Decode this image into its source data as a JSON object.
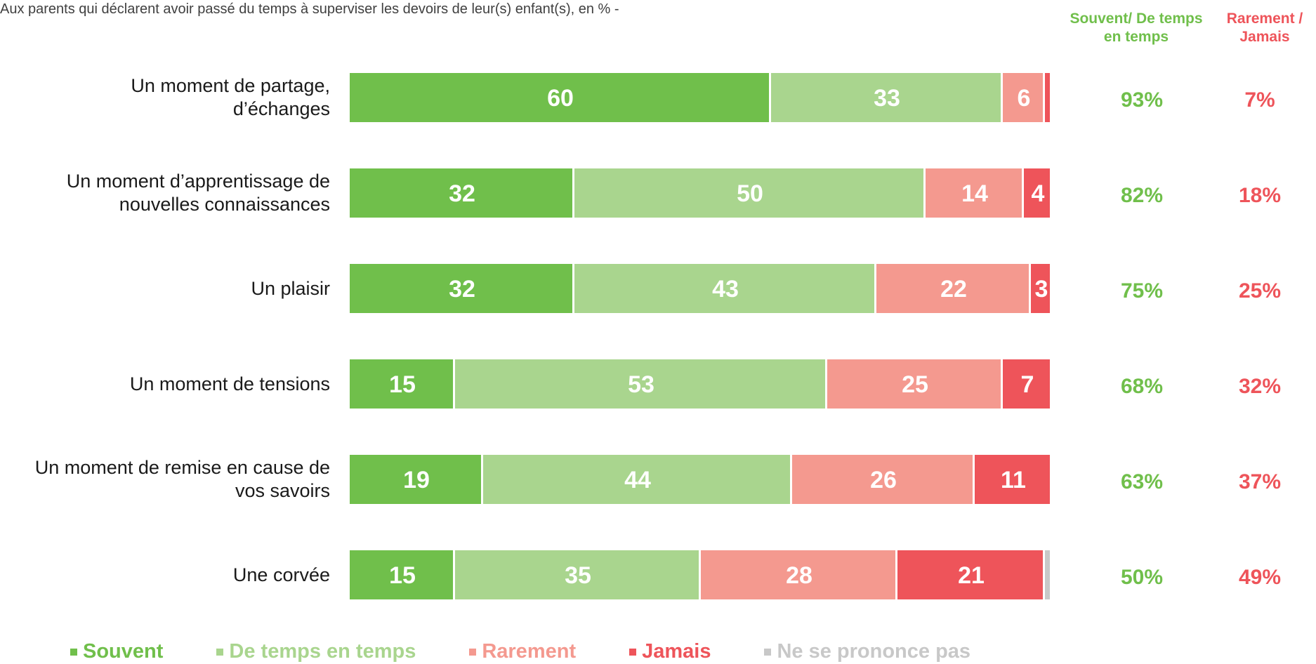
{
  "subtitle": "Aux parents qui déclarent avoir passé du temps à superviser les devoirs de leur(s) enfant(s), en % -",
  "column_headers": {
    "positive": "Souvent/ De temps en temps",
    "negative": "Rarement / Jamais"
  },
  "colors": {
    "souvent": "#70bf4b",
    "de_temps": "#a9d58e",
    "rarement": "#f4998f",
    "jamais": "#ee545a",
    "nspp": "#c8c8c8",
    "positive_text": "#70bf4b",
    "negative_text": "#ee545a"
  },
  "chart_data": {
    "type": "bar",
    "stacked": true,
    "orientation": "horizontal",
    "categories": [
      "Un moment de partage, d’échanges",
      "Un moment d’apprentissage de nouvelles connaissances",
      "Un plaisir",
      "Un moment de tensions",
      "Un moment de remise en cause de vos savoirs",
      "Une corvée"
    ],
    "series": [
      {
        "name": "Souvent",
        "values": [
          60,
          32,
          32,
          15,
          19,
          15
        ]
      },
      {
        "name": "De temps en temps",
        "values": [
          33,
          50,
          43,
          53,
          44,
          35
        ]
      },
      {
        "name": "Rarement",
        "values": [
          6,
          14,
          22,
          25,
          26,
          28
        ]
      },
      {
        "name": "Jamais",
        "values": [
          1,
          4,
          3,
          7,
          11,
          21
        ]
      },
      {
        "name": "Ne se prononce pas",
        "values": [
          0,
          0,
          0,
          0,
          0,
          1
        ]
      }
    ],
    "positive_totals": [
      "93%",
      "82%",
      "75%",
      "68%",
      "63%",
      "50%"
    ],
    "negative_totals": [
      "7%",
      "18%",
      "25%",
      "32%",
      "37%",
      "49%"
    ],
    "xlim": [
      0,
      101
    ],
    "legend_position": "bottom"
  }
}
